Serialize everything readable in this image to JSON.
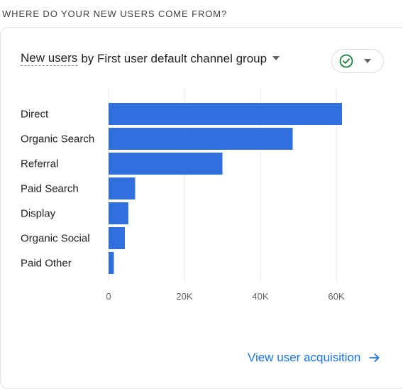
{
  "section_title": "WHERE DO YOUR NEW USERS COME FROM?",
  "card": {
    "metric": "New users",
    "dimension_text": "by First user default channel group",
    "compare_icon": "check-circle-icon",
    "footer_link": "View user acquisition"
  },
  "colors": {
    "bar": "#2f6fde",
    "grid": "#e8eaed",
    "link": "#1a73e8",
    "check": "#188038"
  },
  "chart_data": {
    "type": "bar",
    "orientation": "horizontal",
    "categories": [
      "Direct",
      "Organic Search",
      "Referral",
      "Paid Search",
      "Display",
      "Organic Social",
      "Paid Other"
    ],
    "values": [
      61500,
      48500,
      30000,
      7000,
      5200,
      4300,
      1400
    ],
    "xticks": [
      "0",
      "20K",
      "40K",
      "60K"
    ],
    "xtick_values": [
      0,
      20000,
      40000,
      60000
    ],
    "xlim": [
      0,
      70000
    ],
    "grid": true
  }
}
